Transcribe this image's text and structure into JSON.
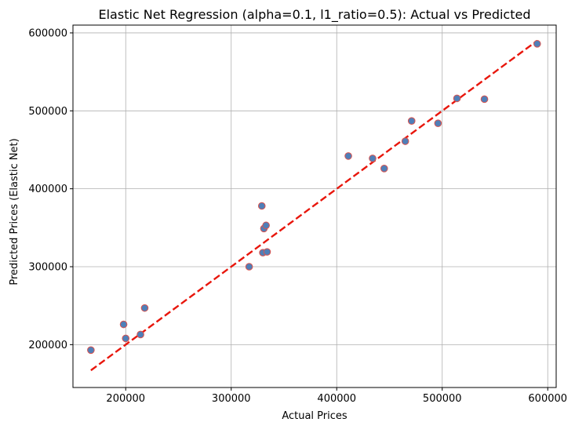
{
  "chart_data": {
    "type": "scatter",
    "title": "Elastic Net Regression (alpha=0.1, l1_ratio=0.5): Actual vs Predicted",
    "xlabel": "Actual Prices",
    "ylabel": "Predicted Prices (Elastic Net)",
    "xlim": [
      150000,
      608000
    ],
    "ylim": [
      145000,
      610000
    ],
    "xticks": [
      200000,
      300000,
      400000,
      500000,
      600000
    ],
    "yticks": [
      200000,
      300000,
      400000,
      500000,
      600000
    ],
    "xtick_labels": [
      "200000",
      "300000",
      "400000",
      "500000",
      "600000"
    ],
    "ytick_labels": [
      "200000",
      "300000",
      "400000",
      "500000",
      "600000"
    ],
    "grid": true,
    "series": [
      {
        "marker_color": "#4f7fb8",
        "edge_color": "#d9534f",
        "points": [
          {
            "x": 167000,
            "y": 193000
          },
          {
            "x": 198000,
            "y": 226000
          },
          {
            "x": 200000,
            "y": 208000
          },
          {
            "x": 214000,
            "y": 213000
          },
          {
            "x": 218000,
            "y": 247000
          },
          {
            "x": 317000,
            "y": 300000
          },
          {
            "x": 329000,
            "y": 378000
          },
          {
            "x": 330000,
            "y": 318000
          },
          {
            "x": 331000,
            "y": 349000
          },
          {
            "x": 333000,
            "y": 353000
          },
          {
            "x": 334000,
            "y": 319000
          },
          {
            "x": 411000,
            "y": 442000
          },
          {
            "x": 434000,
            "y": 439000
          },
          {
            "x": 445000,
            "y": 426000
          },
          {
            "x": 465000,
            "y": 461000
          },
          {
            "x": 471000,
            "y": 487000
          },
          {
            "x": 496000,
            "y": 484000
          },
          {
            "x": 514000,
            "y": 516000
          },
          {
            "x": 540000,
            "y": 515000
          },
          {
            "x": 590000,
            "y": 586000
          }
        ]
      }
    ],
    "reference_line": {
      "x": [
        167000,
        590000
      ],
      "y": [
        167000,
        590000
      ],
      "color": "#e8160c",
      "style": "dashed"
    }
  }
}
